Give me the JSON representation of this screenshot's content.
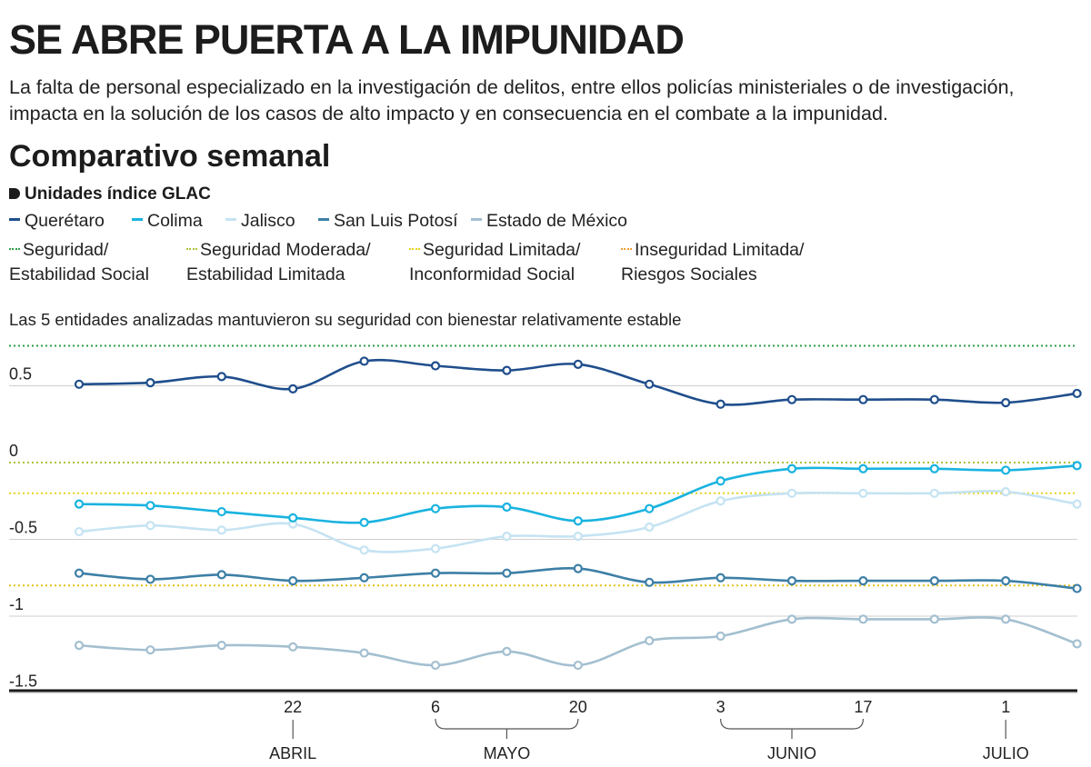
{
  "header": {
    "title": "SE ABRE PUERTA A LA IMPUNIDAD",
    "subtitle": "La falta de personal especializado en la investigación de delitos, entre ellos policías ministeriales o de investigación, impacta en la solución de los casos de alto impacto y en consecuencia en el combate a la impunidad.",
    "section_title": "Comparativo semanal",
    "units_label": "Unidades índice GLAC",
    "note": "Las 5 entidades analizadas mantuvieron su seguridad con bienestar relativamente estable"
  },
  "legend": {
    "series": [
      {
        "label": "Querétaro",
        "color": "#1f4e8c"
      },
      {
        "label": "Colima",
        "color": "#19b3e0"
      },
      {
        "label": "Jalisco",
        "color": "#c5e3f2"
      },
      {
        "label": "San Luis Potosí",
        "color": "#3d7fa6"
      },
      {
        "label": "Estado de México",
        "color": "#a3bfd0"
      }
    ],
    "zones": [
      {
        "line1": "Seguridad/",
        "line2": "Estabilidad Social",
        "color": "#2e9e4a"
      },
      {
        "line1": "Seguridad Moderada/",
        "line2": "Estabilidad Limitada",
        "color": "#a8c43c"
      },
      {
        "line1": "Seguridad Limitada/",
        "line2": "Inconformidad Social",
        "color": "#e6d21e"
      },
      {
        "line1": "Inseguridad Limitada/",
        "line2": "Riesgos Sociales",
        "color": "#f0a03c"
      }
    ]
  },
  "chart_data": {
    "type": "line",
    "ylim": [
      -1.5,
      0.75
    ],
    "y_ticks": [
      0.5,
      0,
      -0.5,
      -1,
      -1.5
    ],
    "y_tick_labels": [
      "0.5",
      "0",
      "-0.5",
      "-1",
      "-1.5"
    ],
    "grid": true,
    "num_points": 15,
    "x_tick_labels": [
      {
        "index": 3,
        "label": "22"
      },
      {
        "index": 5,
        "label": "6"
      },
      {
        "index": 7,
        "label": "20"
      },
      {
        "index": 9,
        "label": "3"
      },
      {
        "index": 11,
        "label": "17"
      },
      {
        "index": 13,
        "label": "1"
      }
    ],
    "months": [
      {
        "label": "ABRIL",
        "at": 3,
        "bracket": null
      },
      {
        "label": "MAYO",
        "at": 6,
        "bracket": [
          5,
          7
        ]
      },
      {
        "label": "JUNIO",
        "at": 10,
        "bracket": [
          9,
          11
        ]
      },
      {
        "label": "JULIO",
        "at": 13,
        "bracket": null
      }
    ],
    "thresholds": [
      {
        "value": 0.76,
        "color": "#2e9e4a"
      },
      {
        "value": 0.0,
        "color": "#a8c43c"
      },
      {
        "value": -0.2,
        "color": "#e6d21e"
      },
      {
        "value": -0.8,
        "color": "#e6c21e"
      }
    ],
    "series": [
      {
        "name": "Querétaro",
        "color": "#1f4e8c",
        "values": [
          0.51,
          0.52,
          0.56,
          0.48,
          0.66,
          0.63,
          0.6,
          0.64,
          0.51,
          0.38,
          0.41,
          0.41,
          0.41,
          0.39,
          0.45
        ]
      },
      {
        "name": "Colima",
        "color": "#19b3e0",
        "values": [
          -0.27,
          -0.28,
          -0.32,
          -0.36,
          -0.39,
          -0.3,
          -0.29,
          -0.38,
          -0.3,
          -0.12,
          -0.04,
          -0.04,
          -0.04,
          -0.05,
          -0.02
        ]
      },
      {
        "name": "Jalisco",
        "color": "#c5e3f2",
        "values": [
          -0.45,
          -0.41,
          -0.44,
          -0.4,
          -0.57,
          -0.56,
          -0.48,
          -0.48,
          -0.42,
          -0.25,
          -0.2,
          -0.2,
          -0.2,
          -0.19,
          -0.27
        ]
      },
      {
        "name": "San Luis Potosí",
        "color": "#3d7fa6",
        "values": [
          -0.72,
          -0.76,
          -0.73,
          -0.77,
          -0.75,
          -0.72,
          -0.72,
          -0.69,
          -0.78,
          -0.75,
          -0.77,
          -0.77,
          -0.77,
          -0.77,
          -0.82
        ]
      },
      {
        "name": "Estado de México",
        "color": "#a3bfd0",
        "values": [
          -1.19,
          -1.22,
          -1.19,
          -1.2,
          -1.24,
          -1.32,
          -1.23,
          -1.32,
          -1.16,
          -1.13,
          -1.02,
          -1.02,
          -1.02,
          -1.02,
          -1.18
        ]
      }
    ]
  }
}
